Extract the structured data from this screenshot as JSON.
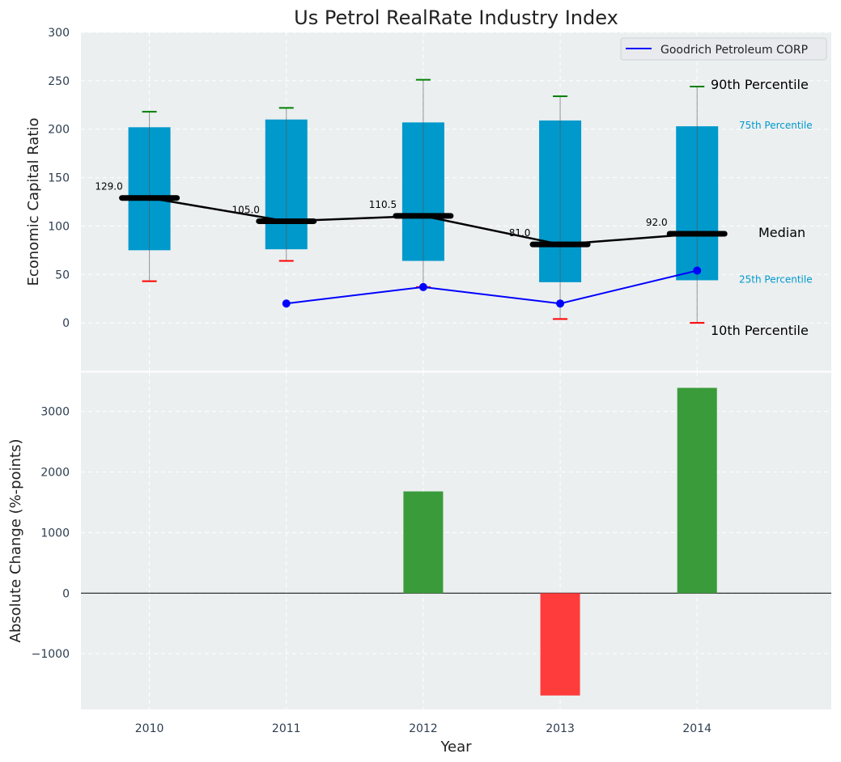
{
  "chart_data": [
    {
      "type": "box",
      "title": "Us Petrol RealRate Industry Index",
      "xlabel": "",
      "ylabel": "Economic Capital Ratio",
      "ylim": [
        -50,
        300
      ],
      "yticks": [
        0,
        50,
        100,
        150,
        200,
        250,
        300
      ],
      "categories": [
        "2010",
        "2011",
        "2012",
        "2013",
        "2014"
      ],
      "p10": [
        43,
        64,
        37,
        4,
        0
      ],
      "p25": [
        75,
        76,
        64,
        42,
        44
      ],
      "median": [
        129.0,
        105.0,
        110.5,
        81.0,
        92.0
      ],
      "median_labels": [
        "129.0",
        "105.0",
        "110.5",
        "81.0",
        "92.0"
      ],
      "p75": [
        202,
        210,
        207,
        209,
        203
      ],
      "p90": [
        218,
        222,
        251,
        234,
        244
      ],
      "company": {
        "name": "Goodrich Petroleum CORP",
        "x": [
          "2011",
          "2012",
          "2013",
          "2014"
        ],
        "values": [
          20,
          37,
          20,
          54
        ]
      },
      "annotations": {
        "p90": "90th Percentile",
        "p75": "75th Percentile",
        "median": "Median",
        "p25": "25th Percentile",
        "p10": "10th Percentile"
      },
      "legend": {
        "position": "top-right",
        "entries": [
          "Goodrich Petroleum CORP"
        ]
      },
      "grid": true,
      "colors": {
        "box": "#0099CC",
        "median": "#000000",
        "company": "#0000FF",
        "p90": "#008000",
        "p10": "#FF0000",
        "bg": "#EBEFF0"
      }
    },
    {
      "type": "bar",
      "xlabel": "Year",
      "ylabel": "Absolute Change (%-points)",
      "ylim": [
        -1920,
        3650
      ],
      "yticks": [
        -1000,
        0,
        1000,
        2000,
        3000
      ],
      "ytick_labels": [
        "−1000",
        "0",
        "1000",
        "2000",
        "3000"
      ],
      "categories": [
        "2010",
        "2011",
        "2012",
        "2013",
        "2014"
      ],
      "values": [
        0,
        0,
        1680,
        -1690,
        3390
      ],
      "grid": true,
      "colors": {
        "positive": "#3A9B3A",
        "negative": "#FF3C3C"
      }
    }
  ]
}
